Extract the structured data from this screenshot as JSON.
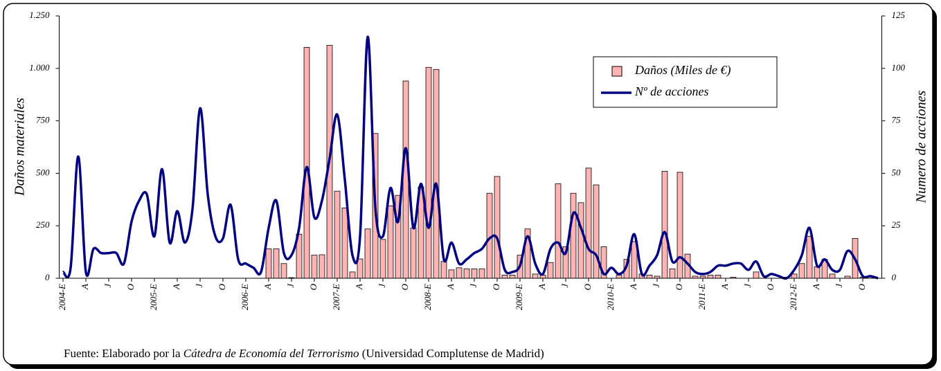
{
  "chart_data": {
    "type": "bar-line",
    "y_label": "Daños materiales",
    "y2_label": "Numero de acciones",
    "source": {
      "prefix": "Fuente: Elaborado por la ",
      "emphasis": "Cátedra de Economía del Terrorismo",
      "suffix": " (Universidad Complutense de Madrid)"
    },
    "categories": [
      "2004-E",
      null,
      null,
      "A",
      null,
      null,
      "J",
      null,
      null,
      "O",
      null,
      null,
      "2005-E",
      null,
      null,
      "A",
      null,
      null,
      "J",
      null,
      null,
      "O",
      null,
      null,
      "2006-E",
      null,
      null,
      "A",
      null,
      null,
      "J",
      null,
      null,
      "O",
      null,
      null,
      "2007-E",
      null,
      null,
      "A",
      null,
      null,
      "J",
      null,
      null,
      "O",
      null,
      null,
      "2008-E",
      null,
      null,
      "A",
      null,
      null,
      "J",
      null,
      null,
      "O",
      null,
      null,
      "2009-E",
      null,
      null,
      "A",
      null,
      null,
      "J",
      null,
      null,
      "O",
      null,
      null,
      "2010-E",
      null,
      null,
      "A",
      null,
      null,
      "J",
      null,
      null,
      "O",
      null,
      null,
      "2011-E",
      null,
      null,
      "A",
      null,
      null,
      "J",
      null,
      null,
      "O",
      null,
      null,
      "2012-E",
      null,
      null,
      "A",
      null,
      null,
      "J",
      null,
      null,
      "O",
      null,
      null
    ],
    "series": [
      {
        "name": "Daños (Miles de €)",
        "color": "#ffb3b3",
        "values": [
          null,
          null,
          null,
          null,
          null,
          null,
          null,
          null,
          null,
          null,
          null,
          null,
          null,
          null,
          null,
          null,
          null,
          null,
          null,
          null,
          null,
          null,
          null,
          null,
          null,
          null,
          null,
          140,
          140,
          70,
          3,
          210,
          1100,
          110,
          112,
          1110,
          415,
          335,
          30,
          92,
          235,
          690,
          185,
          345,
          395,
          940,
          240,
          435,
          1005,
          995,
          80,
          40,
          50,
          45,
          45,
          45,
          405,
          485,
          15,
          15,
          110,
          235,
          20,
          15,
          75,
          450,
          150,
          405,
          360,
          525,
          445,
          150,
          0,
          15,
          90,
          175,
          20,
          15,
          10,
          510,
          45,
          505,
          115,
          10,
          10,
          15,
          15,
          0,
          5,
          0,
          0,
          30,
          0,
          0,
          0,
          5,
          20,
          70,
          200,
          55,
          90,
          20,
          0,
          10,
          190,
          5,
          0,
          0
        ]
      },
      {
        "name": "Nº de acciones",
        "color": "#000080",
        "axis": "y2",
        "values": [
          3,
          5,
          58,
          3,
          14,
          12,
          12,
          12,
          7,
          27,
          37,
          40,
          20,
          52,
          17,
          32,
          17,
          33,
          81,
          40,
          20,
          19,
          35,
          9,
          7,
          5,
          3,
          24,
          37,
          12,
          11,
          24,
          53,
          29,
          37,
          57,
          78,
          47,
          11,
          20,
          115,
          34,
          20,
          43,
          27,
          62,
          24,
          45,
          24,
          45,
          9,
          17,
          7,
          9,
          12,
          14,
          19,
          19,
          4,
          3,
          6,
          20,
          7,
          2,
          14,
          17,
          12,
          31,
          24,
          14,
          11,
          2,
          5,
          2,
          6,
          21,
          2,
          6,
          11,
          22,
          8,
          10,
          7,
          3,
          2,
          3,
          6,
          6,
          7,
          7,
          4,
          8,
          1,
          2,
          1,
          0,
          4,
          11,
          24,
          6,
          9,
          4,
          4,
          13,
          9,
          1,
          1,
          0
        ]
      }
    ],
    "ylim": [
      0,
      1250
    ],
    "yticks": [
      0,
      250,
      500,
      750,
      {
        "value": 1000,
        "label": "1.000"
      },
      {
        "value": 1250,
        "label": "1.250"
      }
    ],
    "y2lim": [
      0,
      125
    ],
    "y2ticks": [
      0,
      25,
      50,
      75,
      100,
      125
    ]
  }
}
